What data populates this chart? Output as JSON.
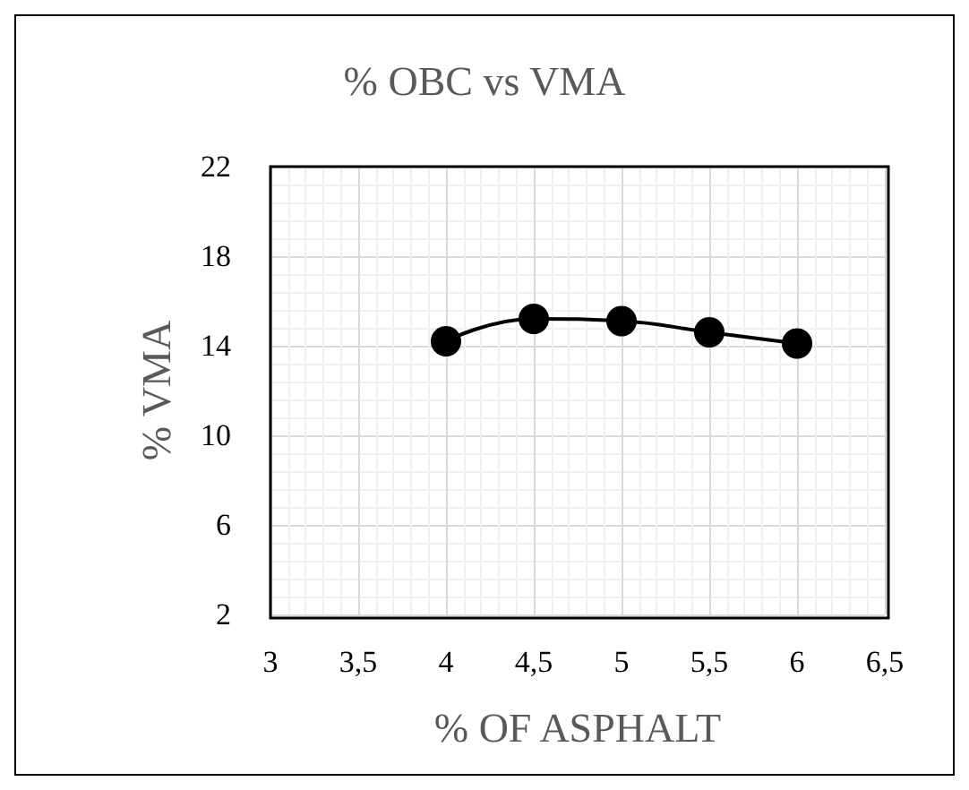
{
  "chart_data": {
    "type": "line",
    "title": "% OBC vs VMA",
    "xlabel": "% OF ASPHALT",
    "ylabel": "% VMA",
    "x": [
      4,
      4.5,
      5,
      5.5,
      6
    ],
    "series": [
      {
        "color": "#000000",
        "values": [
          14.2,
          15.2,
          15.1,
          14.6,
          14.1
        ]
      }
    ],
    "xlim": [
      3,
      6.5
    ],
    "xticks": [
      3,
      {
        "value": 3.5,
        "label": "3,5"
      },
      4,
      {
        "value": 4.5,
        "label": "4,5"
      },
      5,
      {
        "value": 5.5,
        "label": "5,5"
      },
      6,
      {
        "value": 6.5,
        "label": "6,5"
      }
    ],
    "ylim": [
      2,
      22
    ],
    "yticks": [
      2,
      6,
      10,
      14,
      18,
      22
    ],
    "grid": true,
    "marker": "circle",
    "line_style": "solid"
  }
}
